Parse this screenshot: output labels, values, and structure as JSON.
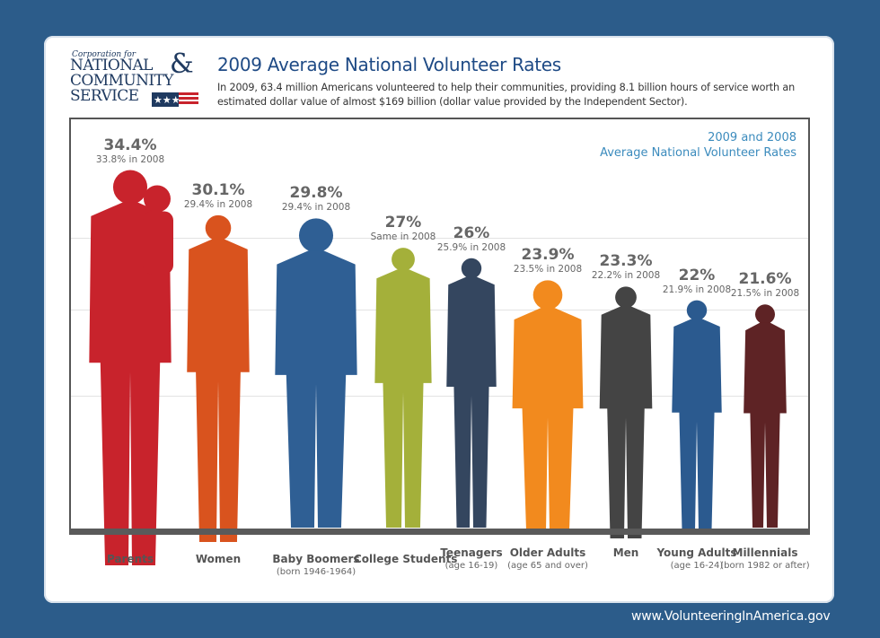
{
  "logo": {
    "line_small": "Corporation for",
    "line1": "NATIONAL",
    "amp": "&",
    "line2": "COMMUNITY",
    "line3": "SERVICE"
  },
  "header": {
    "title": "2009 Average National Volunteer Rates",
    "subtitle": "In 2009, 63.4 million Americans volunteered to help their communities, providing 8.1 billion hours of service worth an estimated dollar value of almost $169 billion (dollar value provided by the Independent Sector)."
  },
  "legend": {
    "line1": "2009 and 2008",
    "line2": "Average National Volunteer Rates"
  },
  "footer": {
    "url": "www.VolunteeringInAmerica.gov"
  },
  "colors": {
    "background": "#2c5c8a",
    "title": "#1e4a85",
    "legend": "#3b8bbd"
  },
  "chart_data": {
    "type": "bar",
    "title": "2009 Average National Volunteer Rates",
    "legend": "2009 and 2008 Average National Volunteer Rates",
    "categories": [
      "Parents",
      "Women",
      "Baby Boomers",
      "College Students",
      "Teenagers",
      "Older Adults",
      "Men",
      "Young Adults",
      "Millennials"
    ],
    "values": [
      34.4,
      30.1,
      29.8,
      27,
      26,
      23.9,
      23.3,
      22,
      21.6
    ],
    "values_2008": [
      33.8,
      29.4,
      29.4,
      27,
      25.9,
      23.5,
      22.2,
      21.9,
      21.5
    ],
    "grid": true,
    "items": [
      {
        "name": "Parents",
        "note": "",
        "value": 34.4,
        "value_label": "34.4%",
        "prev_label": "33.8% in 2008",
        "color": "#c8232c"
      },
      {
        "name": "Women",
        "note": "",
        "value": 30.1,
        "value_label": "30.1%",
        "prev_label": "29.4% in 2008",
        "color": "#d9531e"
      },
      {
        "name": "Baby Boomers",
        "note": "(born 1946-1964)",
        "value": 29.8,
        "value_label": "29.8%",
        "prev_label": "29.4% in 2008",
        "color": "#2f5f94"
      },
      {
        "name": "College Students",
        "note": "",
        "value": 27,
        "value_label": "27%",
        "prev_label": "Same in 2008",
        "color": "#a4b03a"
      },
      {
        "name": "Teenagers",
        "note": "(age 16-19)",
        "value": 26,
        "value_label": "26%",
        "prev_label": "25.9% in 2008",
        "color": "#34465f"
      },
      {
        "name": "Older Adults",
        "note": "(age 65 and over)",
        "value": 23.9,
        "value_label": "23.9%",
        "prev_label": "23.5% in 2008",
        "color": "#f28a1e"
      },
      {
        "name": "Men",
        "note": "",
        "value": 23.3,
        "value_label": "23.3%",
        "prev_label": "22.2% in 2008",
        "color": "#444444"
      },
      {
        "name": "Young Adults",
        "note": "(age 16-24)",
        "value": 22,
        "value_label": "22%",
        "prev_label": "21.9% in 2008",
        "color": "#2b5a8f"
      },
      {
        "name": "Millennials",
        "note": "(born 1982 or after)",
        "value": 21.6,
        "value_label": "21.6%",
        "prev_label": "21.5% in 2008",
        "color": "#5e2325"
      }
    ]
  }
}
